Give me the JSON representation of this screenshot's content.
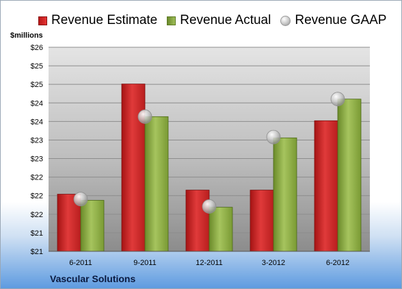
{
  "legend": [
    {
      "label": "Revenue Estimate",
      "icon": "red-bar-swatch",
      "color": "#d42a2a"
    },
    {
      "label": "Revenue Actual",
      "icon": "green-bar-swatch",
      "color": "#8aaa44"
    },
    {
      "label": "Revenue GAAP",
      "icon": "gray-ball-marker",
      "color": "#b8b8b8"
    }
  ],
  "unit_label": "$millions",
  "company": "Vascular Solutions",
  "chart_data": {
    "type": "bar",
    "categories": [
      "6-2011",
      "9-2011",
      "12-2011",
      "3-2012",
      "6-2012"
    ],
    "series": [
      {
        "name": "Revenue Estimate",
        "values": [
          22.4,
          25.1,
          22.5,
          22.5,
          24.2
        ]
      },
      {
        "name": "Revenue Actual",
        "values": [
          22.25,
          24.3,
          22.08,
          23.78,
          24.73
        ]
      },
      {
        "name": "Revenue GAAP",
        "marker": "ball",
        "values": [
          22.28,
          24.3,
          22.1,
          23.8,
          24.73
        ]
      }
    ],
    "ylim": [
      21,
      26
    ],
    "y_tick_labels": [
      "$21",
      "$21",
      "$22",
      "$22",
      "$22",
      "$23",
      "$23",
      "$24",
      "$24",
      "$25",
      "$25",
      "$26"
    ],
    "grid": true
  }
}
